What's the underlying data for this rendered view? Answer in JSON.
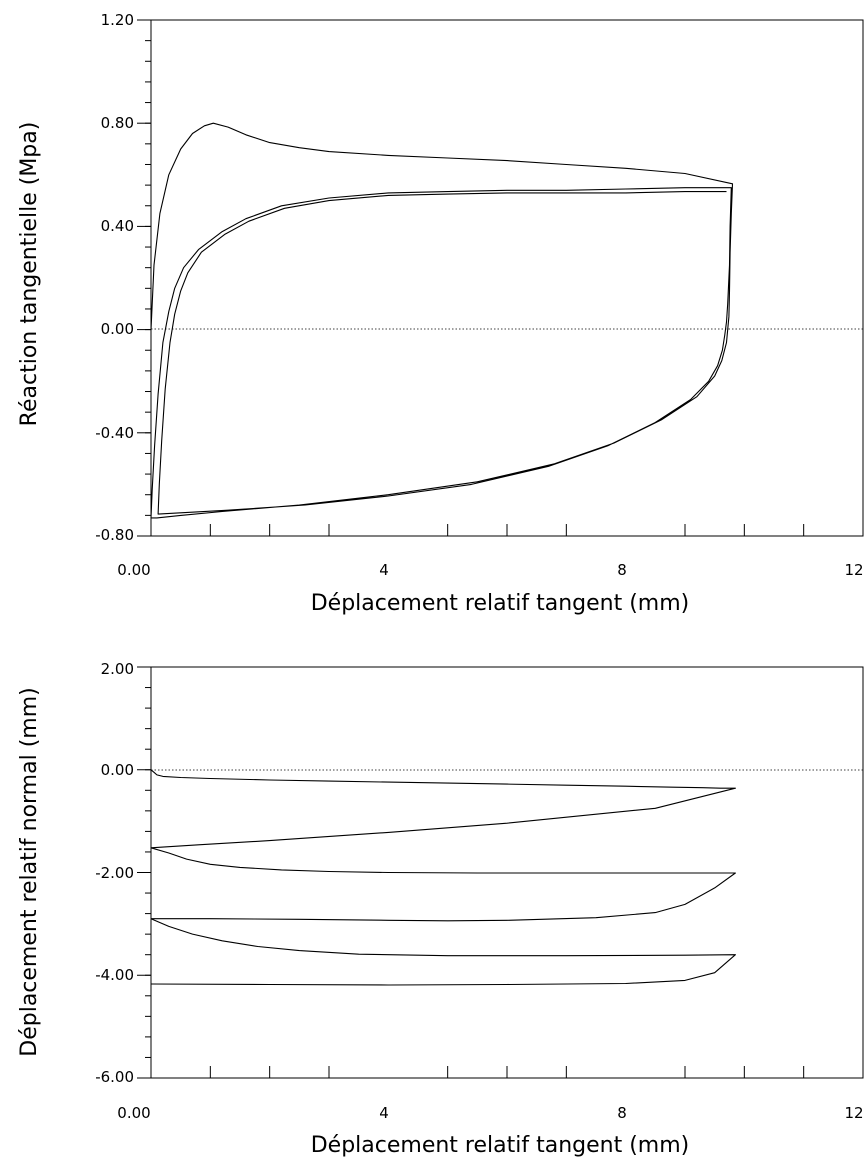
{
  "chart_data": [
    {
      "type": "line",
      "title": "",
      "xlabel": "Déplacement relatif tangent (mm)",
      "ylabel": "Réaction tangentielle (Mpa)",
      "xlim": [
        0,
        12
      ],
      "ylim": [
        -0.8,
        1.2
      ],
      "grid": false,
      "x_tick_labels": [
        "0.00",
        "4",
        "8",
        "12"
      ],
      "y_tick_labels": [
        "1.20",
        "0.80",
        "0.40",
        "0.00",
        "-0.40",
        "-0.80"
      ],
      "zero_line": true,
      "series": [
        {
          "x": [
            0.0,
            0.05,
            0.15,
            0.3,
            0.5,
            0.7,
            0.9,
            1.05,
            1.3,
            1.6,
            2.0,
            2.5,
            3.0,
            4.0,
            5.0,
            6.0,
            7.0,
            8.0,
            9.0,
            9.8,
            9.78,
            9.76,
            9.75,
            9.74,
            9.72,
            9.7,
            9.62,
            9.5,
            9.2,
            8.6,
            7.8,
            6.8,
            5.5,
            4.0,
            2.5,
            1.2,
            0.5,
            0.1,
            0.0,
            0.02,
            0.06,
            0.12,
            0.2,
            0.3,
            0.4,
            0.55,
            0.8,
            1.2,
            1.6,
            2.2,
            3.0,
            4.0,
            5.0,
            6.0,
            7.0,
            8.0,
            9.0,
            9.6,
            9.78,
            9.76,
            9.75,
            9.72,
            9.7,
            9.67,
            9.63,
            9.55,
            9.4,
            9.1,
            8.5,
            7.7,
            6.7,
            5.4,
            4.0,
            2.6,
            1.3,
            0.5,
            0.12,
            0.14,
            0.18,
            0.24,
            0.32,
            0.4,
            0.5,
            0.62,
            0.85,
            1.25,
            1.65,
            2.25,
            3.0,
            4.0,
            5.0,
            6.0,
            7.0,
            8.0,
            9.0,
            9.7
          ],
          "y": [
            0.0,
            0.25,
            0.45,
            0.6,
            0.7,
            0.76,
            0.79,
            0.8,
            0.785,
            0.755,
            0.725,
            0.705,
            0.69,
            0.675,
            0.665,
            0.655,
            0.64,
            0.625,
            0.605,
            0.565,
            0.45,
            0.3,
            0.15,
            0.05,
            0.0,
            -0.05,
            -0.12,
            -0.18,
            -0.26,
            -0.35,
            -0.44,
            -0.52,
            -0.59,
            -0.64,
            -0.68,
            -0.705,
            -0.72,
            -0.73,
            -0.73,
            -0.62,
            -0.45,
            -0.25,
            -0.05,
            0.07,
            0.16,
            0.24,
            0.31,
            0.38,
            0.43,
            0.48,
            0.51,
            0.53,
            0.535,
            0.54,
            0.54,
            0.545,
            0.55,
            0.55,
            0.55,
            0.4,
            0.25,
            0.1,
            0.03,
            -0.02,
            -0.08,
            -0.14,
            -0.2,
            -0.27,
            -0.36,
            -0.45,
            -0.53,
            -0.6,
            -0.645,
            -0.68,
            -0.7,
            -0.71,
            -0.715,
            -0.6,
            -0.43,
            -0.23,
            -0.05,
            0.06,
            0.15,
            0.22,
            0.3,
            0.37,
            0.42,
            0.47,
            0.5,
            0.52,
            0.525,
            0.53,
            0.53,
            0.53,
            0.535,
            0.535
          ]
        }
      ]
    },
    {
      "type": "line",
      "title": "",
      "xlabel": "Déplacement relatif tangent (mm)",
      "ylabel": "Déplacement relatif normal (mm)",
      "xlim": [
        0,
        12
      ],
      "ylim": [
        -6.0,
        2.0
      ],
      "grid": false,
      "x_tick_labels": [
        "0.00",
        "4",
        "8",
        "12"
      ],
      "y_tick_labels": [
        "2.00",
        "0.00",
        "-2.00",
        "-4.00",
        "-6.00"
      ],
      "zero_line": true,
      "series": [
        {
          "x": [
            0.0,
            0.05,
            0.1,
            0.2,
            0.5,
            1.0,
            2.0,
            3.0,
            4.0,
            5.0,
            6.0,
            7.0,
            8.0,
            8.8,
            9.3,
            9.6,
            9.85,
            8.5,
            6.0,
            4.0,
            2.0,
            0.8,
            0.0,
            0.3,
            0.6,
            1.0,
            1.5,
            2.2,
            3.0,
            4.0,
            5.5,
            7.0,
            9.85,
            9.5,
            9.0,
            8.5,
            7.5,
            6.0,
            5.0,
            4.0,
            2.5,
            1.0,
            0.0,
            0.3,
            0.7,
            1.2,
            1.8,
            2.5,
            3.5,
            5.0,
            7.0,
            9.0,
            9.85,
            9.5,
            9.0,
            8.0,
            6.0,
            4.0,
            2.0,
            0.0
          ],
          "y": [
            0.0,
            -0.05,
            -0.1,
            -0.13,
            -0.15,
            -0.17,
            -0.2,
            -0.22,
            -0.24,
            -0.26,
            -0.28,
            -0.3,
            -0.32,
            -0.34,
            -0.35,
            -0.36,
            -0.36,
            -0.75,
            -1.04,
            -1.22,
            -1.38,
            -1.46,
            -1.52,
            -1.62,
            -1.74,
            -1.84,
            -1.9,
            -1.95,
            -1.98,
            -2.0,
            -2.01,
            -2.01,
            -2.01,
            -2.3,
            -2.62,
            -2.78,
            -2.88,
            -2.93,
            -2.94,
            -2.93,
            -2.91,
            -2.9,
            -2.9,
            -3.05,
            -3.2,
            -3.33,
            -3.44,
            -3.52,
            -3.59,
            -3.62,
            -3.62,
            -3.61,
            -3.6,
            -3.95,
            -4.1,
            -4.16,
            -4.18,
            -4.19,
            -4.18,
            -4.17
          ]
        }
      ]
    }
  ]
}
